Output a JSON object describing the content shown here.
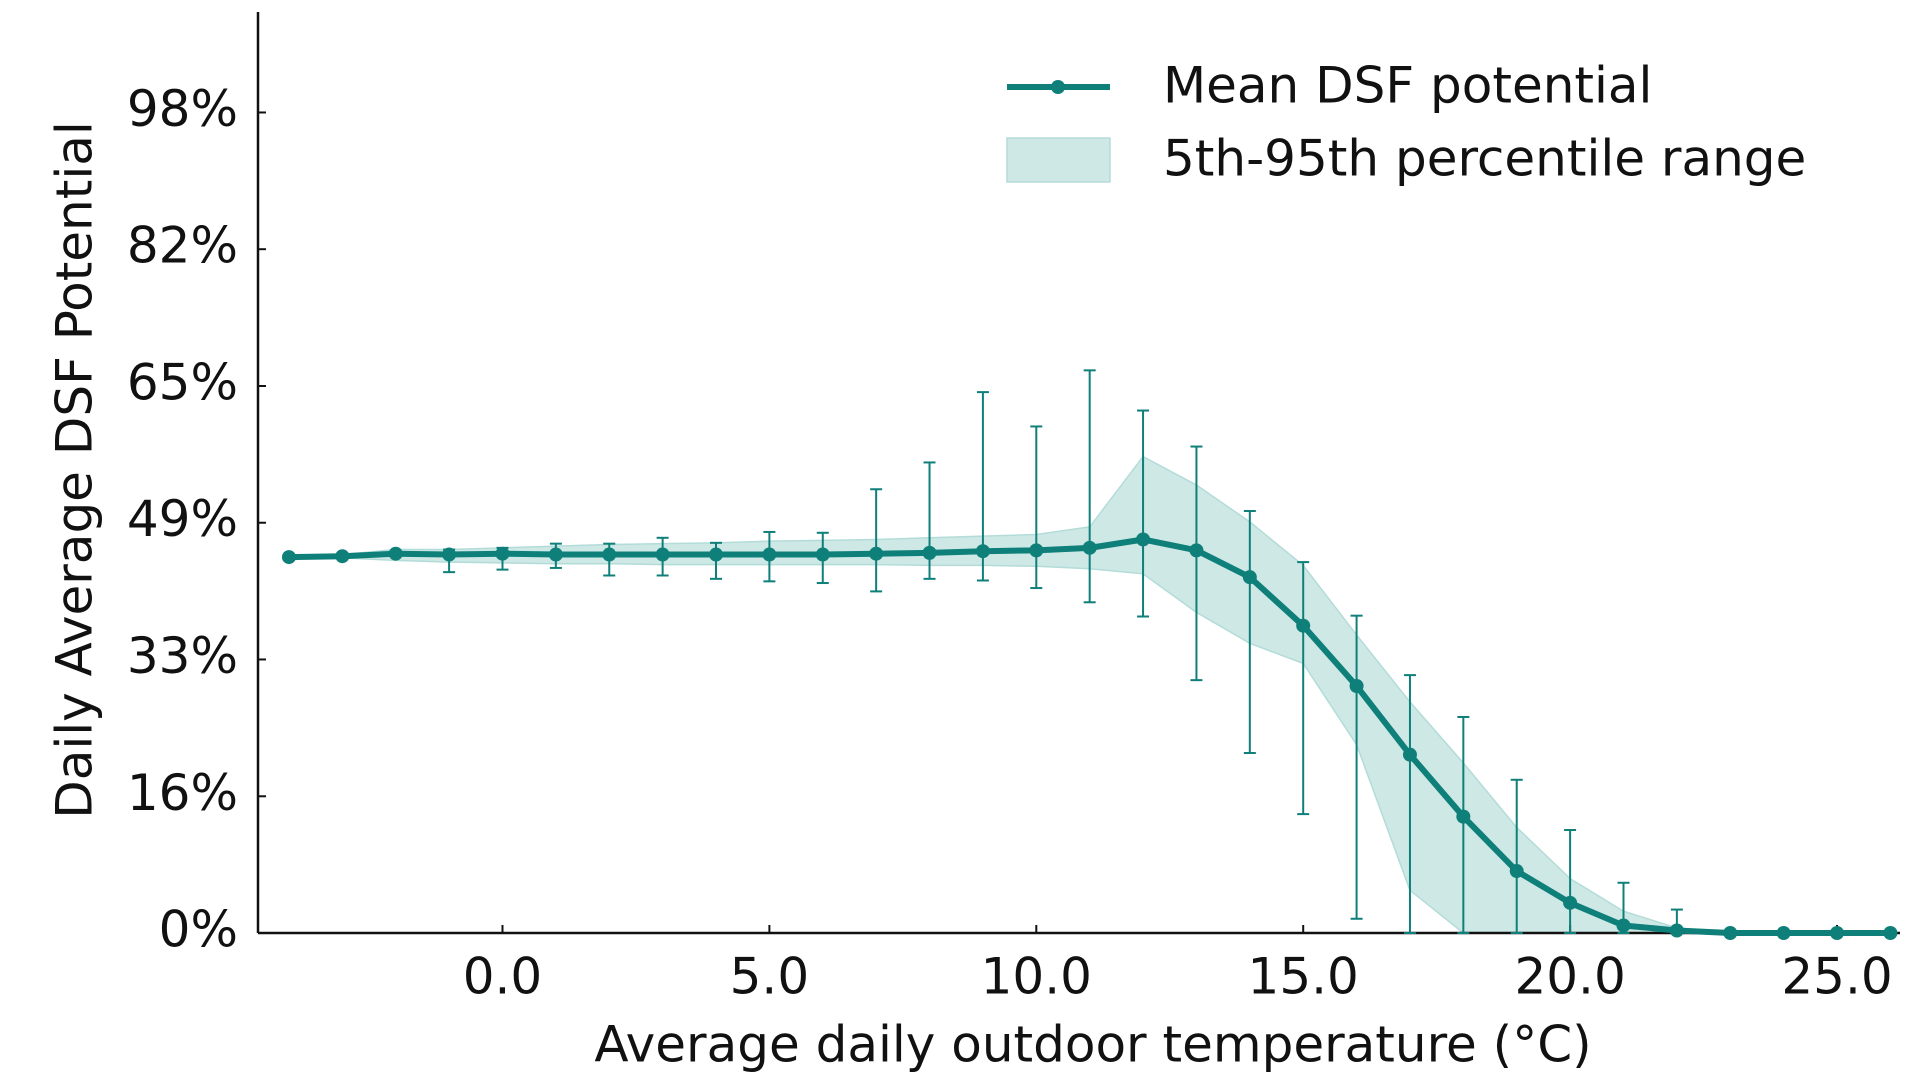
{
  "chart_data": {
    "type": "line",
    "xlabel": "Average daily outdoor temperature (°C)",
    "ylabel": "Daily Average DSF Potential",
    "x": [
      -4,
      -3,
      -2,
      -1,
      0,
      1,
      2,
      3,
      4,
      5,
      6,
      7,
      8,
      9,
      10,
      11,
      12,
      13,
      14,
      15,
      16,
      17,
      18,
      19,
      20,
      21,
      22,
      23,
      24,
      25,
      26
    ],
    "series": [
      {
        "name": "Mean DSF potential",
        "color": "#0f7f7a",
        "values": [
          44.9,
          45.0,
          45.3,
          45.2,
          45.3,
          45.2,
          45.2,
          45.2,
          45.2,
          45.2,
          45.2,
          45.3,
          45.4,
          45.6,
          45.7,
          46.0,
          47.0,
          45.7,
          42.5,
          36.7,
          29.5,
          21.3,
          13.9,
          7.4,
          3.6,
          0.9,
          0.3,
          0,
          0,
          0,
          0
        ]
      }
    ],
    "band": {
      "name": "5th-95th percentile range",
      "color": "#b3dcd9",
      "upper": [
        44.9,
        45.2,
        45.8,
        45.8,
        46.0,
        46.2,
        46.4,
        46.5,
        46.6,
        46.8,
        46.9,
        47.0,
        47.2,
        47.4,
        47.6,
        48.5,
        56.9,
        53.5,
        49.1,
        43.9,
        35.6,
        27.6,
        20.3,
        12.6,
        6.5,
        2.6,
        0.6,
        0.1,
        0,
        0,
        0
      ],
      "lower": [
        44.9,
        44.8,
        44.5,
        44.3,
        44.2,
        44.1,
        44.1,
        44.0,
        44.0,
        44.0,
        44.0,
        44.0,
        43.9,
        43.9,
        43.8,
        43.5,
        42.9,
        38.3,
        34.6,
        32.2,
        22.5,
        5.1,
        0,
        0,
        0,
        0,
        0,
        0,
        0,
        0,
        0
      ]
    },
    "error_bars": {
      "lower": [
        null,
        null,
        null,
        43.1,
        43.4,
        43.6,
        42.7,
        42.7,
        42.3,
        42.0,
        41.8,
        40.8,
        42.3,
        42.1,
        41.2,
        39.5,
        37.8,
        30.2,
        21.5,
        14.2,
        1.7,
        0,
        0,
        0,
        0,
        0,
        0,
        null,
        null,
        null,
        null
      ],
      "upper": [
        null,
        null,
        null,
        45.8,
        46.0,
        46.5,
        46.5,
        47.2,
        46.6,
        47.9,
        47.8,
        53.0,
        56.2,
        64.6,
        60.5,
        67.2,
        62.4,
        58.1,
        50.4,
        44.3,
        37.9,
        30.8,
        25.8,
        18.3,
        12.3,
        6.0,
        2.8,
        null,
        null,
        null,
        null
      ]
    },
    "xlim": [
      -4.58,
      26.18
    ],
    "xticks": [
      {
        "value": 0,
        "label": "0.0"
      },
      {
        "value": 5,
        "label": "5.0"
      },
      {
        "value": 10,
        "label": "10.0"
      },
      {
        "value": 15,
        "label": "15.0"
      },
      {
        "value": 20,
        "label": "20.0"
      },
      {
        "value": 25,
        "label": "25.0"
      }
    ],
    "ylim": [
      0,
      110
    ],
    "yticks": [
      {
        "value": 0,
        "label": "0%"
      },
      {
        "value": 16.33,
        "label": "16%"
      },
      {
        "value": 32.67,
        "label": "33%"
      },
      {
        "value": 49,
        "label": "49%"
      },
      {
        "value": 65.33,
        "label": "65%"
      },
      {
        "value": 81.67,
        "label": "82%"
      },
      {
        "value": 98,
        "label": "98%"
      }
    ],
    "legend": "upper right"
  }
}
